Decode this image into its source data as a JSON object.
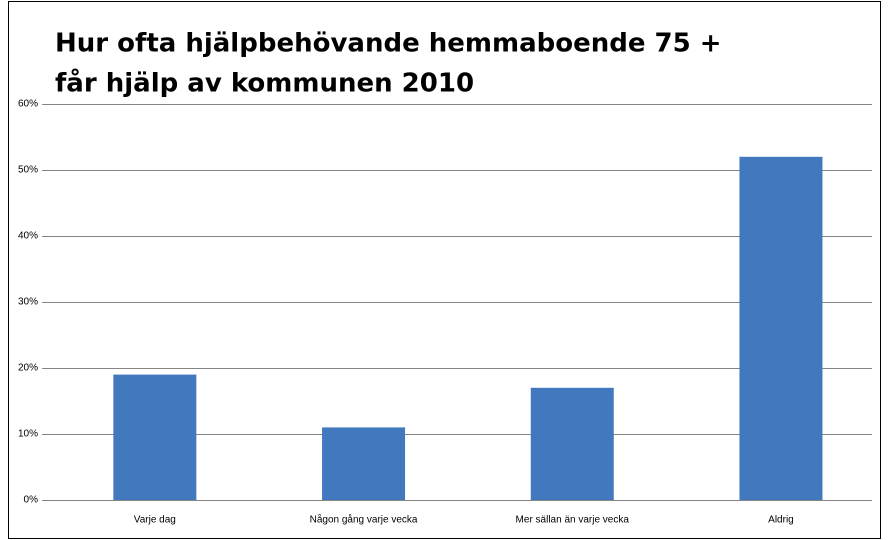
{
  "chart_data": {
    "type": "bar",
    "title": [
      "Hur ofta hjälpbehövande hemmaboende 75 +",
      "får hjälp av kommunen 2010"
    ],
    "categories": [
      "Varje dag",
      "Någon gång varje vecka",
      "Mer sällan än varje vecka",
      "Aldrig"
    ],
    "values": [
      19,
      11,
      17,
      52
    ],
    "color": "#4178be",
    "ylim": [
      0,
      60
    ],
    "yticks": [
      {
        "value": 0,
        "label": "0%"
      },
      {
        "value": 10,
        "label": "10%"
      },
      {
        "value": 20,
        "label": "20%"
      },
      {
        "value": 30,
        "label": "30%"
      },
      {
        "value": 40,
        "label": "40%"
      },
      {
        "value": 50,
        "label": "50%"
      },
      {
        "value": 60,
        "label": "60%"
      }
    ],
    "grid": true
  }
}
